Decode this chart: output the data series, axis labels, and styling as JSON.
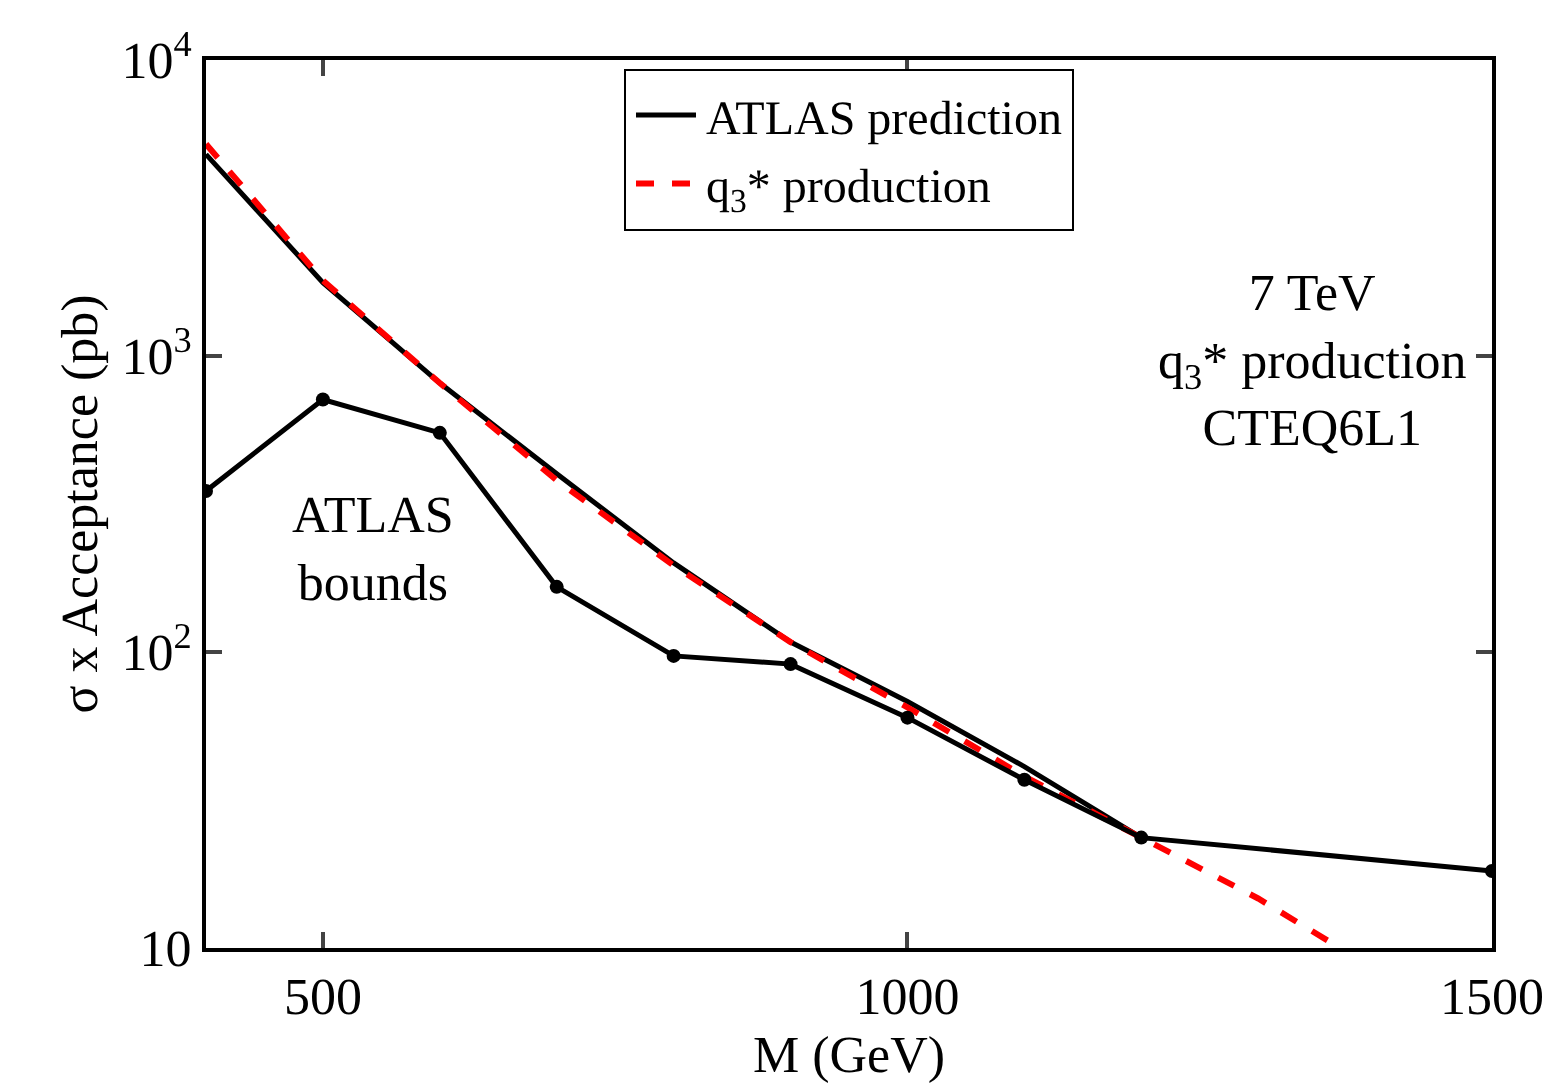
{
  "chart_data": {
    "type": "line",
    "xlabel": "M (GeV)",
    "ylabel": "σ x Acceptance (pb)",
    "log": "y",
    "legend": "top",
    "xlim": [
      400,
      1500
    ],
    "xticks": [
      500,
      1000,
      1500
    ],
    "ylim": [
      10,
      10000
    ],
    "yticks": [
      {
        "value": 10,
        "label": "10"
      },
      {
        "value": 100,
        "label": "10$^{2}$"
      },
      {
        "value": 1000,
        "label": "10$^{3}$"
      },
      {
        "value": 10000,
        "label": "10$^{4}$"
      }
    ],
    "series": [
      {
        "name": "ATLAS prediction",
        "color": "#000000",
        "line_style": "solid",
        "marker": "none",
        "x": [
          400,
          500,
          600,
          700,
          800,
          900,
          1000,
          1100,
          1200
        ],
        "values": [
          4800,
          1770,
          810,
          400,
          200,
          108,
          68,
          41,
          23.6
        ]
      },
      {
        "name": "q$_{3}$* production",
        "color": "#ff0000",
        "line_style": "dashed",
        "marker": "none",
        "x": [
          400,
          500,
          600,
          700,
          800,
          900,
          1000,
          1100,
          1200,
          1300,
          1370
        ],
        "values": [
          5200,
          1800,
          810,
          380,
          196,
          108,
          65,
          38,
          23.6,
          14.7,
          10
        ]
      },
      {
        "color": "#000000",
        "line_style": "solid",
        "marker": "circle",
        "x": [
          400,
          500,
          600,
          700,
          800,
          900,
          1000,
          1100,
          1200,
          1500
        ],
        "values": [
          350,
          713,
          550,
          166,
          97,
          91,
          60,
          37,
          23.6,
          18.2
        ]
      }
    ],
    "annotations": [
      "ATLAS\nbounds",
      "7 TeV\nq$_{3}$* production\nCTEQ6L1"
    ]
  }
}
